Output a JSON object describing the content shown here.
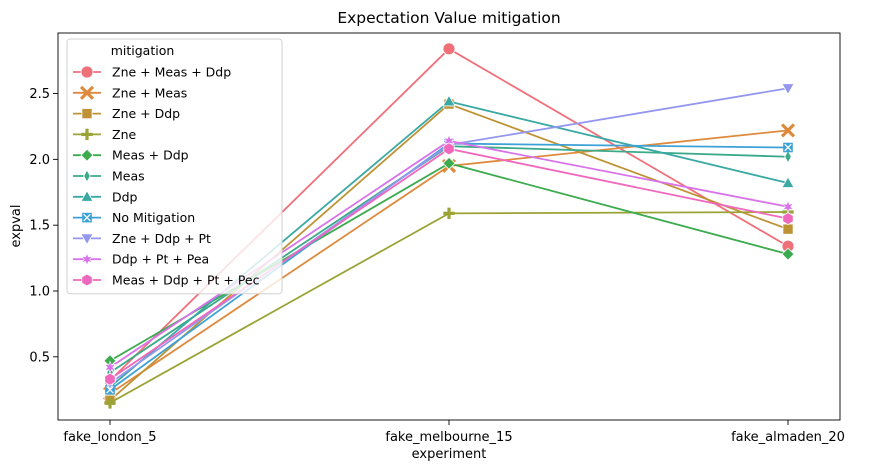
{
  "chart_data": {
    "type": "line",
    "title": "Expectation Value mitigation",
    "xlabel": "experiment",
    "ylabel": "expval",
    "categories": [
      "fake_london_5",
      "fake_melbourne_15",
      "fake_almaden_20"
    ],
    "ylim": [
      0.02,
      2.96
    ],
    "yticks": [
      0.5,
      1.0,
      1.5,
      2.0,
      2.5
    ],
    "ytick_labels": [
      "0.5",
      "1.0",
      "1.5",
      "2.0",
      "2.5"
    ],
    "grid": false,
    "legend": {
      "title": "mitigation",
      "placement": "top-left"
    },
    "series": [
      {
        "name": "Zne + Meas + Ddp",
        "values": [
          0.32,
          2.84,
          1.34
        ],
        "color": "#f0707a",
        "marker": "circle"
      },
      {
        "name": "Zne + Meas",
        "values": [
          0.22,
          1.95,
          2.22
        ],
        "color": "#de8a3e",
        "marker": "x"
      },
      {
        "name": "Zne + Ddp",
        "values": [
          0.17,
          2.42,
          1.47
        ],
        "color": "#bf9335",
        "marker": "square"
      },
      {
        "name": "Zne",
        "values": [
          0.15,
          1.59,
          1.6
        ],
        "color": "#9aa335",
        "marker": "plus"
      },
      {
        "name": "Meas + Ddp",
        "values": [
          0.47,
          1.97,
          1.28
        ],
        "color": "#3cab4e",
        "marker": "diamond"
      },
      {
        "name": "Meas",
        "values": [
          0.38,
          2.1,
          2.02
        ],
        "color": "#3aaa89",
        "marker": "thin_diamond"
      },
      {
        "name": "Ddp",
        "values": [
          0.27,
          2.44,
          1.82
        ],
        "color": "#3aa9a4",
        "marker": "triangle_up"
      },
      {
        "name": "No Mitigation",
        "values": [
          0.25,
          2.12,
          2.09
        ],
        "color": "#3ca1d6",
        "marker": "x_square"
      },
      {
        "name": "Zne + Ddp + Pt",
        "values": [
          0.3,
          2.11,
          2.54
        ],
        "color": "#9597ef",
        "marker": "triangle_down"
      },
      {
        "name": "Ddp + Pt + Pea",
        "values": [
          0.42,
          2.14,
          1.64
        ],
        "color": "#d873ea",
        "marker": "star"
      },
      {
        "name": "Meas + Ddp + Pt + Pec",
        "values": [
          0.33,
          2.08,
          1.55
        ],
        "color": "#ef68bd",
        "marker": "hexagon"
      }
    ]
  }
}
